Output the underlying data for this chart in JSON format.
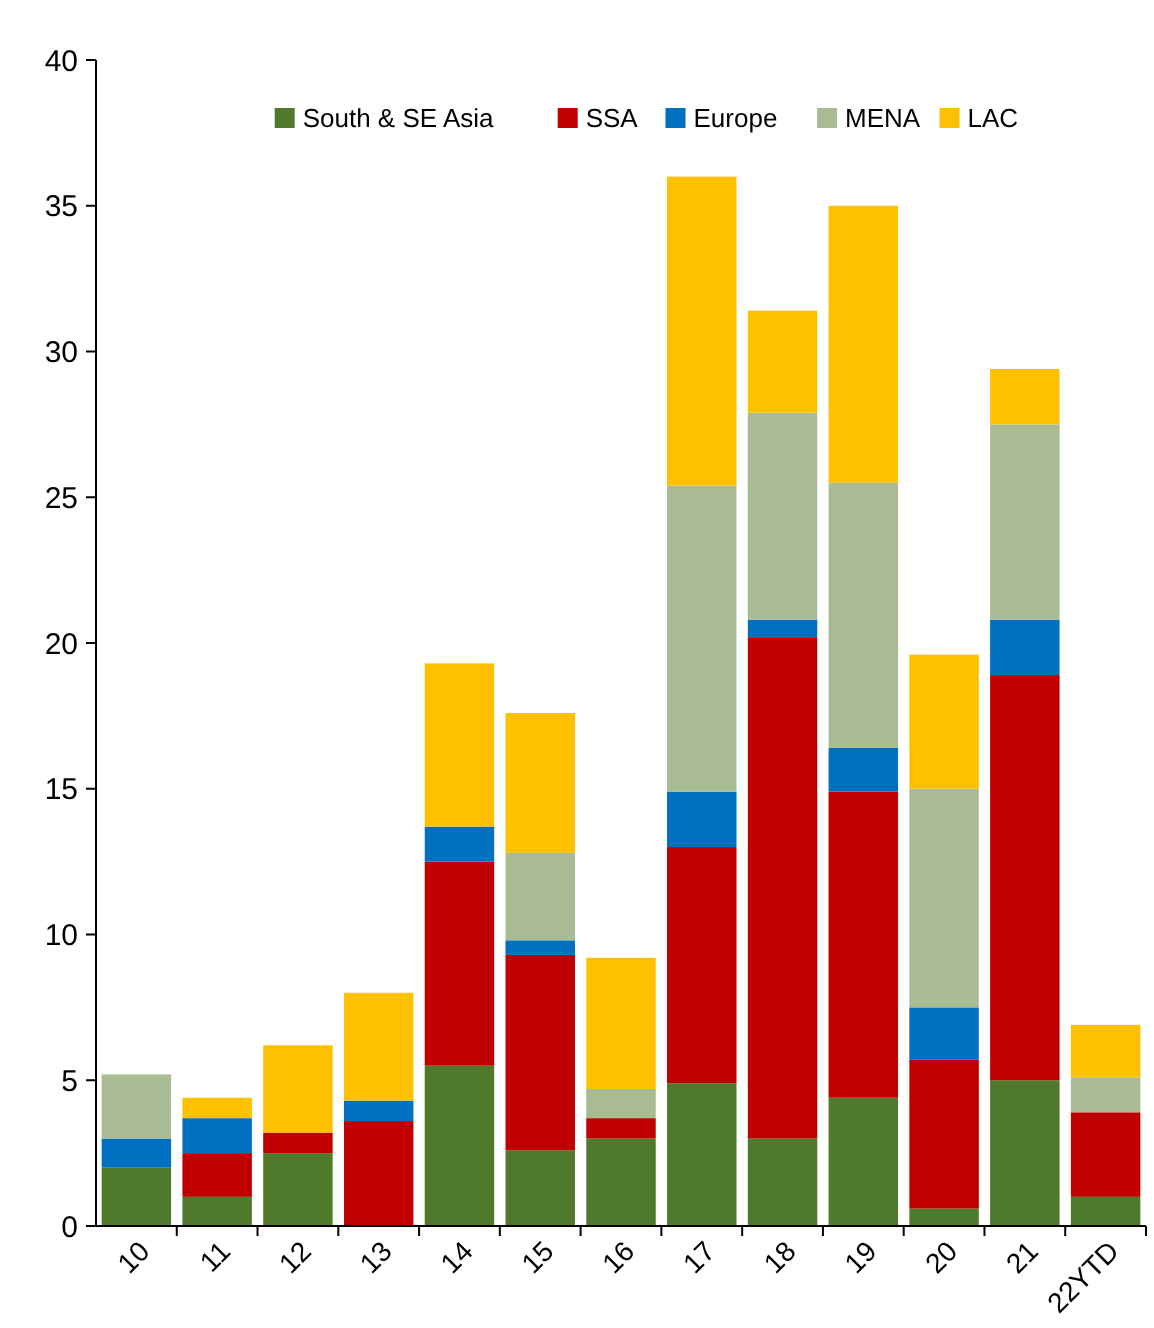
{
  "chart_data": {
    "type": "bar",
    "stacked": true,
    "categories": [
      "10",
      "11",
      "12",
      "13",
      "14",
      "15",
      "16",
      "17",
      "18",
      "19",
      "20",
      "21",
      "22YTD"
    ],
    "series": [
      {
        "name": "South & SE Asia",
        "color": "#507a2b",
        "values": [
          2.0,
          1.0,
          2.5,
          0,
          5.5,
          2.6,
          3.0,
          4.9,
          3.0,
          4.4,
          0.6,
          5.0,
          1.0
        ]
      },
      {
        "name": "SSA",
        "color": "#c00000",
        "values": [
          0,
          1.5,
          0.7,
          3.6,
          7.0,
          6.7,
          0.7,
          8.1,
          17.2,
          10.5,
          5.1,
          13.9,
          2.9
        ]
      },
      {
        "name": "Europe",
        "color": "#0070c0",
        "values": [
          1.0,
          1.2,
          0,
          0.7,
          1.2,
          0.5,
          0,
          1.9,
          0.6,
          1.5,
          1.8,
          1.9,
          0
        ]
      },
      {
        "name": "MENA",
        "color": "#a8bb93",
        "values": [
          2.2,
          0,
          0,
          0,
          0,
          3.0,
          1.0,
          10.5,
          7.1,
          9.1,
          7.5,
          6.7,
          1.2
        ]
      },
      {
        "name": "LAC",
        "color": "#ffc000",
        "values": [
          0,
          0.7,
          3.0,
          3.7,
          5.6,
          4.8,
          4.5,
          10.6,
          3.5,
          9.5,
          4.6,
          1.9,
          1.8
        ]
      }
    ],
    "ylim": [
      0,
      40
    ],
    "yticks": [
      0,
      5,
      10,
      15,
      20,
      25,
      30,
      35,
      40
    ],
    "grid": false,
    "legend": "top"
  }
}
